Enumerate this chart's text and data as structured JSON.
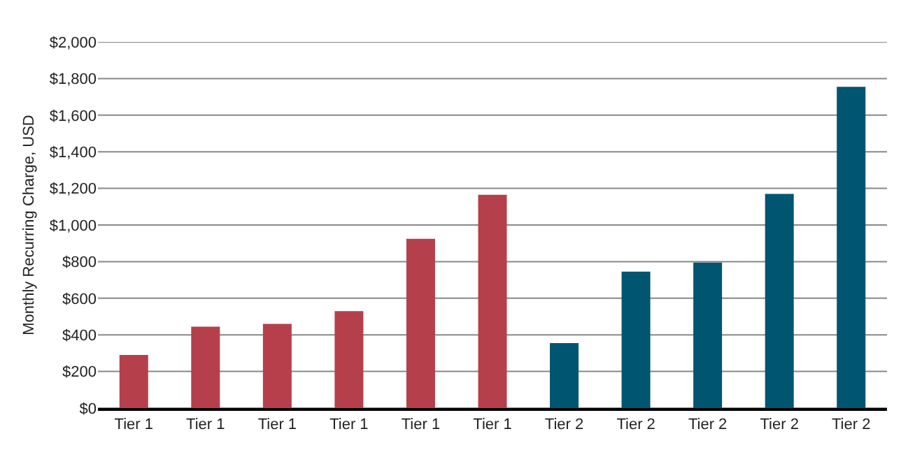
{
  "chart_data": {
    "type": "bar",
    "ylabel": "Monthly Recurring Charge, USD",
    "categories": [
      "Tier 1",
      "Tier 1",
      "Tier 1",
      "Tier 1",
      "Tier 1",
      "Tier 1",
      "Tier 2",
      "Tier 2",
      "Tier 2",
      "Tier 2",
      "Tier 2"
    ],
    "values": [
      290,
      445,
      460,
      530,
      925,
      1165,
      355,
      745,
      795,
      1170,
      1755
    ],
    "colors": [
      "#b5404b",
      "#b5404b",
      "#b5404b",
      "#b5404b",
      "#b5404b",
      "#b5404b",
      "#005570",
      "#005570",
      "#005570",
      "#005570",
      "#005570"
    ],
    "ylim": [
      0,
      2000
    ],
    "yticks": [
      {
        "value": 0,
        "label": "$0"
      },
      {
        "value": 200,
        "label": "$200"
      },
      {
        "value": 400,
        "label": "$400"
      },
      {
        "value": 600,
        "label": "$600"
      },
      {
        "value": 800,
        "label": "$800"
      },
      {
        "value": 1000,
        "label": "$1,000"
      },
      {
        "value": 1200,
        "label": "$1,200"
      },
      {
        "value": 1400,
        "label": "$1,400"
      },
      {
        "value": 1600,
        "label": "$1,600"
      },
      {
        "value": 1800,
        "label": "$1,800"
      },
      {
        "value": 2000,
        "label": "$2,000"
      }
    ],
    "grid": "y"
  }
}
